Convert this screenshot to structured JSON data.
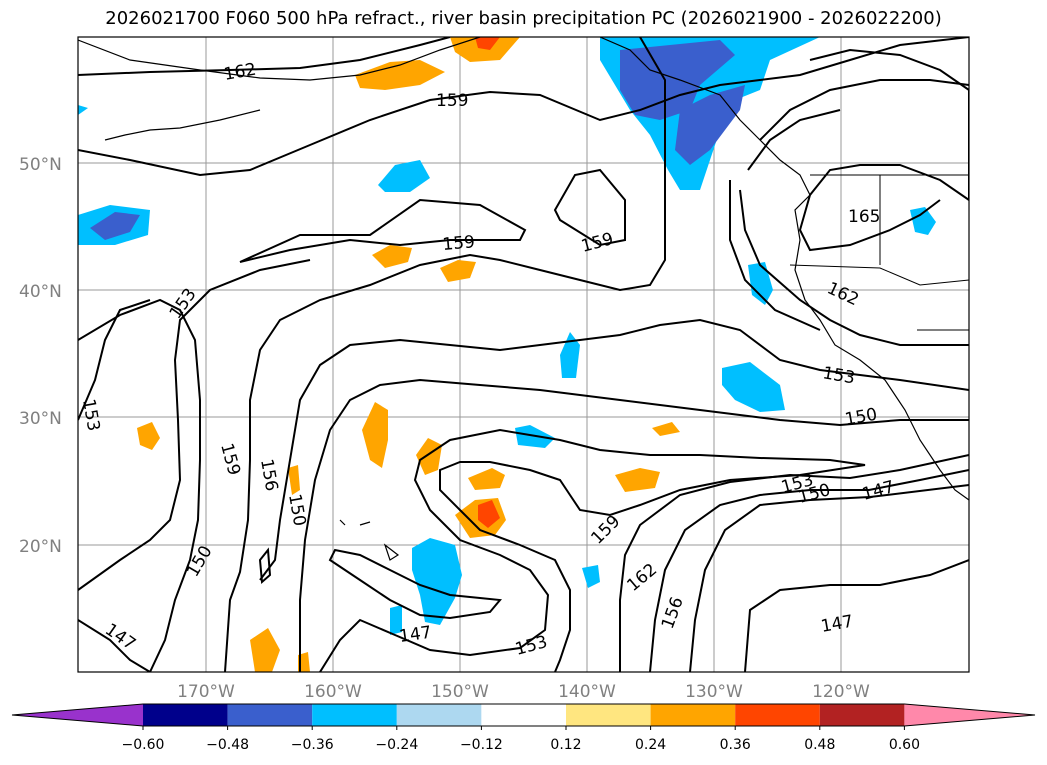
{
  "title": "2026021700 F060 500 hPa refract., river basin precipitation PC (2026021900 - 2026022200)",
  "lat_labels": [
    "50°N",
    "40°N",
    "30°N",
    "20°N"
  ],
  "lon_labels": [
    "170°W",
    "160°W",
    "150°W",
    "140°W",
    "130°W",
    "120°W"
  ],
  "colorbar": {
    "tick_labels": [
      "−0.60",
      "−0.48",
      "−0.36",
      "−0.24",
      "−0.12",
      "0.12",
      "0.24",
      "0.36",
      "0.48",
      "0.60"
    ],
    "colors": [
      "#9932cc",
      "#00008b",
      "#3a5fcd",
      "#00bfff",
      "#add8f0",
      "#ffffff",
      "#ffe680",
      "#ffa500",
      "#ff4500",
      "#b22222",
      "#ff88aa"
    ]
  },
  "contour_labels": [
    {
      "text": "162"
    },
    {
      "text": "159"
    },
    {
      "text": "159"
    },
    {
      "text": "159"
    },
    {
      "text": "165"
    },
    {
      "text": "162"
    },
    {
      "text": "153"
    },
    {
      "text": "153"
    },
    {
      "text": "150"
    },
    {
      "text": "153"
    },
    {
      "text": "150"
    },
    {
      "text": "147"
    },
    {
      "text": "159"
    },
    {
      "text": "156"
    },
    {
      "text": "150"
    },
    {
      "text": "150"
    },
    {
      "text": "147"
    },
    {
      "text": "147"
    },
    {
      "text": "153"
    },
    {
      "text": "159"
    },
    {
      "text": "162"
    },
    {
      "text": "156"
    },
    {
      "text": "147"
    },
    {
      "text": "153"
    }
  ]
}
